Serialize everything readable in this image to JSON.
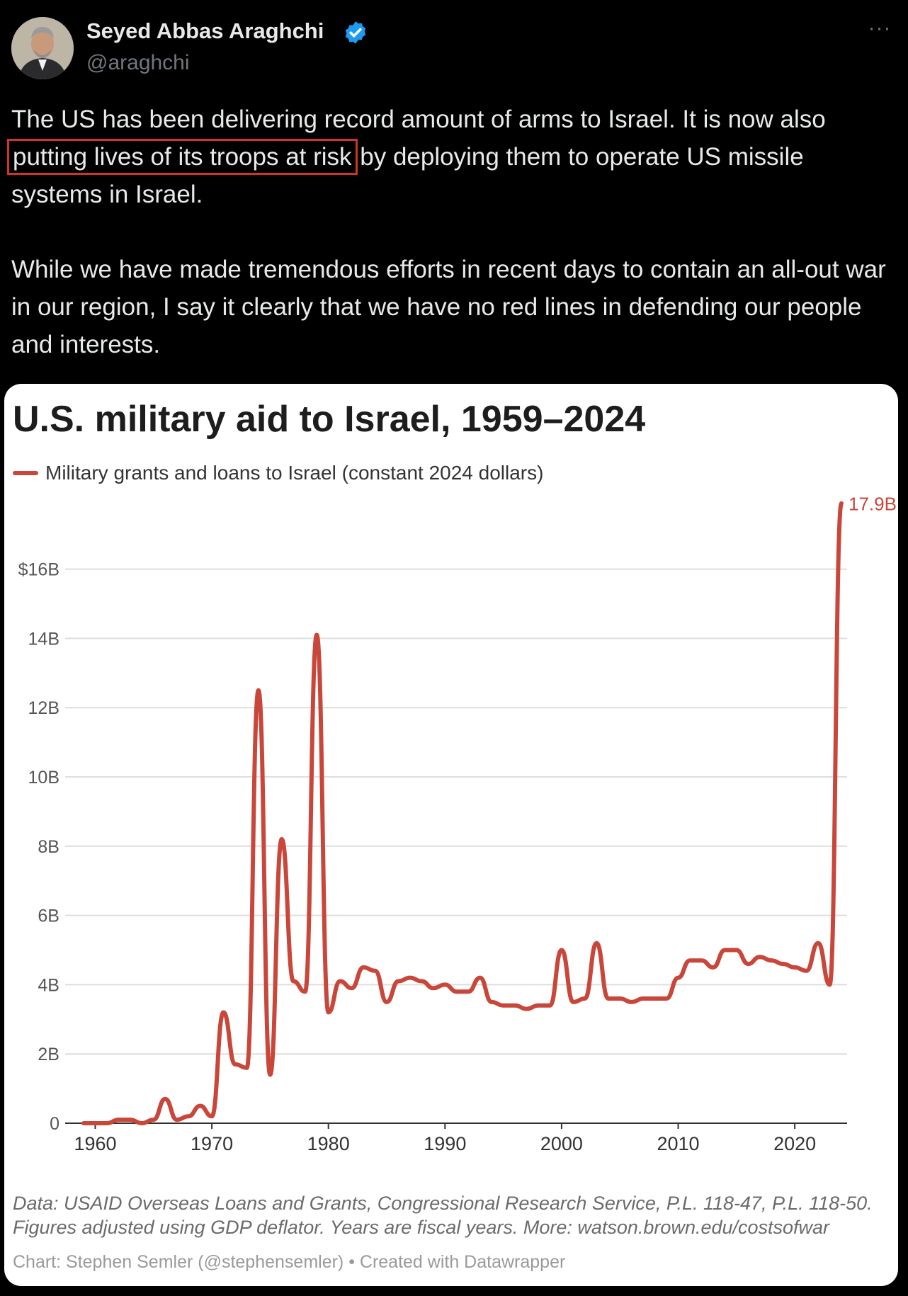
{
  "author": {
    "display_name": "Seyed Abbas Araghchi",
    "handle": "@araghchi",
    "verified": true,
    "verified_color": "#1d9bf0"
  },
  "menu": {
    "more_label": "···"
  },
  "tweet": {
    "line1_before": "The US has been delivering record amount of arms to Israel. It is now also ",
    "line1_highlight": "putting lives of its troops at risk",
    "line1_after": " by deploying them to operate US missile systems in Israel.",
    "paragraph2": "While we have made tremendous efforts in recent days to contain an all-out war in our region, I say it clearly that we have no red lines in defending our people and interests.",
    "highlight_color": "#d0322e"
  },
  "card": {
    "footnote_line1": "Data: USAID Overseas Loans and Grants, Congressional Research Service, P.L. 118-47, P.L. 118-50.",
    "footnote_line2": "Figures adjusted using GDP deflator. Years are fiscal years. More: watson.brown.edu/costsofwar",
    "credit": "Chart: Stephen Semler (@stephensemler) • Created with Datawrapper"
  },
  "chart_data": {
    "type": "line",
    "title": "U.S. military aid to Israel, 1959–2024",
    "series": [
      {
        "name": "Military grants and loans to Israel (constant 2024 dollars)",
        "color": "#c8473a",
        "x": [
          1959,
          1960,
          1961,
          1962,
          1963,
          1964,
          1965,
          1966,
          1967,
          1968,
          1969,
          1970,
          1971,
          1972,
          1973,
          1974,
          1975,
          1976,
          1977,
          1978,
          1979,
          1980,
          1981,
          1982,
          1983,
          1984,
          1985,
          1986,
          1987,
          1988,
          1989,
          1990,
          1991,
          1992,
          1993,
          1994,
          1995,
          1996,
          1997,
          1998,
          1999,
          2000,
          2001,
          2002,
          2003,
          2004,
          2005,
          2006,
          2007,
          2008,
          2009,
          2010,
          2011,
          2012,
          2013,
          2014,
          2015,
          2016,
          2017,
          2018,
          2019,
          2020,
          2021,
          2022,
          2023,
          2024
        ],
        "values": [
          0,
          0,
          0,
          0.1,
          0.1,
          0.0,
          0.1,
          0.7,
          0.1,
          0.2,
          0.5,
          0.2,
          3.2,
          1.7,
          1.6,
          12.5,
          1.4,
          8.2,
          4.1,
          3.8,
          14.1,
          3.2,
          4.1,
          3.9,
          4.5,
          4.4,
          3.5,
          4.1,
          4.2,
          4.1,
          3.9,
          4.0,
          3.8,
          3.8,
          4.2,
          3.5,
          3.4,
          3.4,
          3.3,
          3.4,
          3.4,
          5.0,
          3.5,
          3.6,
          5.2,
          3.6,
          3.6,
          3.5,
          3.6,
          3.6,
          3.6,
          4.2,
          4.7,
          4.7,
          4.5,
          5.0,
          5.0,
          4.6,
          4.8,
          4.7,
          4.6,
          4.5,
          4.4,
          5.2,
          4.0,
          17.9
        ]
      }
    ],
    "end_label": "17.9B",
    "y_ticks": [
      0,
      2,
      4,
      6,
      8,
      10,
      12,
      14,
      16
    ],
    "y_tick_labels": [
      "0",
      "2B",
      "4B",
      "6B",
      "8B",
      "10B",
      "12B",
      "14B",
      "$16B"
    ],
    "x_ticks": [
      1960,
      1970,
      1980,
      1990,
      2000,
      2010,
      2020
    ],
    "xlim": [
      1959,
      2024
    ],
    "ylim": [
      0,
      16
    ],
    "grid": true,
    "xlabel": "",
    "ylabel": ""
  }
}
